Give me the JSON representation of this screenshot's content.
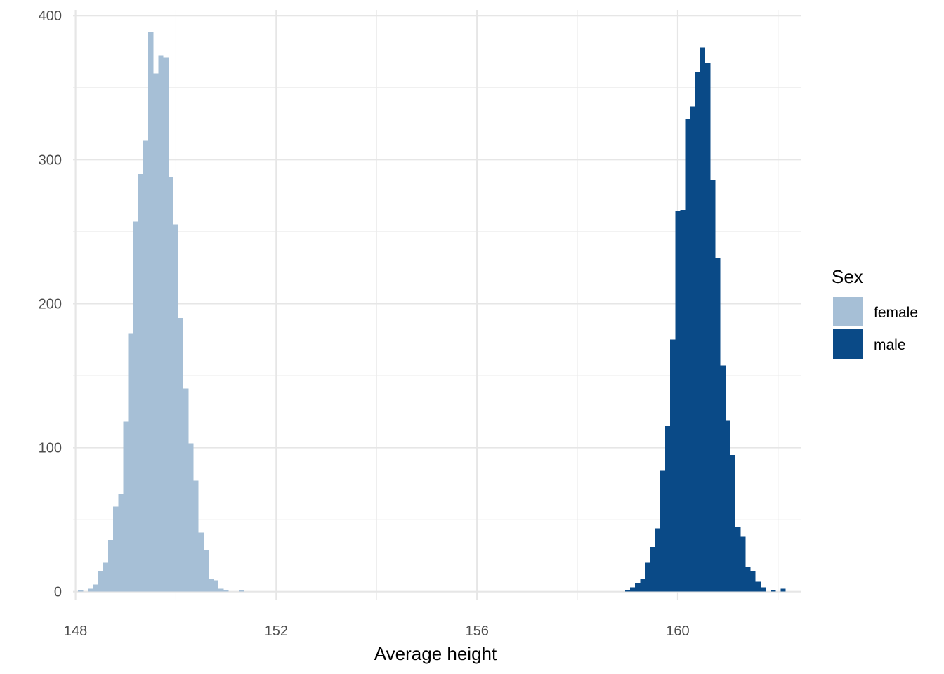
{
  "chart_data": {
    "type": "histogram",
    "title": "",
    "xlabel": "Average height",
    "ylabel": "",
    "xlim": [
      147.95,
      162.45
    ],
    "ylim": [
      -6,
      404
    ],
    "x_ticks": [
      148,
      152,
      156,
      160
    ],
    "x_tick_labels": [
      "148",
      "152",
      "156",
      "160"
    ],
    "y_ticks": [
      0,
      100,
      200,
      300,
      400
    ],
    "y_tick_labels": [
      "0",
      "100",
      "200",
      "300",
      "400"
    ],
    "bin_width": 0.1,
    "grid": true,
    "legend_position": "right",
    "legend_title": "Sex",
    "series": [
      {
        "name": "female",
        "color": "#a6bfd6",
        "bins": [
          {
            "x": 148.1,
            "y": 1
          },
          {
            "x": 148.2,
            "y": 0
          },
          {
            "x": 148.3,
            "y": 2
          },
          {
            "x": 148.4,
            "y": 5
          },
          {
            "x": 148.5,
            "y": 14
          },
          {
            "x": 148.6,
            "y": 20
          },
          {
            "x": 148.7,
            "y": 36
          },
          {
            "x": 148.8,
            "y": 59
          },
          {
            "x": 148.9,
            "y": 68
          },
          {
            "x": 149.0,
            "y": 118
          },
          {
            "x": 149.1,
            "y": 179
          },
          {
            "x": 149.2,
            "y": 257
          },
          {
            "x": 149.3,
            "y": 290
          },
          {
            "x": 149.4,
            "y": 313
          },
          {
            "x": 149.5,
            "y": 389
          },
          {
            "x": 149.6,
            "y": 360
          },
          {
            "x": 149.7,
            "y": 372
          },
          {
            "x": 149.8,
            "y": 371
          },
          {
            "x": 149.9,
            "y": 288
          },
          {
            "x": 150.0,
            "y": 255
          },
          {
            "x": 150.1,
            "y": 190
          },
          {
            "x": 150.2,
            "y": 141
          },
          {
            "x": 150.3,
            "y": 103
          },
          {
            "x": 150.4,
            "y": 77
          },
          {
            "x": 150.5,
            "y": 41
          },
          {
            "x": 150.6,
            "y": 29
          },
          {
            "x": 150.7,
            "y": 9
          },
          {
            "x": 150.8,
            "y": 8
          },
          {
            "x": 150.9,
            "y": 2
          },
          {
            "x": 151.0,
            "y": 1
          },
          {
            "x": 151.1,
            "y": 0
          },
          {
            "x": 151.2,
            "y": 0
          },
          {
            "x": 151.3,
            "y": 1
          }
        ]
      },
      {
        "name": "male",
        "color": "#0a4a87",
        "bins": [
          {
            "x": 159.0,
            "y": 1
          },
          {
            "x": 159.1,
            "y": 3
          },
          {
            "x": 159.2,
            "y": 6
          },
          {
            "x": 159.3,
            "y": 9
          },
          {
            "x": 159.4,
            "y": 20
          },
          {
            "x": 159.5,
            "y": 31
          },
          {
            "x": 159.6,
            "y": 44
          },
          {
            "x": 159.7,
            "y": 84
          },
          {
            "x": 159.8,
            "y": 115
          },
          {
            "x": 159.9,
            "y": 175
          },
          {
            "x": 160.0,
            "y": 264
          },
          {
            "x": 160.1,
            "y": 265
          },
          {
            "x": 160.2,
            "y": 328
          },
          {
            "x": 160.3,
            "y": 337
          },
          {
            "x": 160.4,
            "y": 361
          },
          {
            "x": 160.5,
            "y": 378
          },
          {
            "x": 160.6,
            "y": 367
          },
          {
            "x": 160.7,
            "y": 286
          },
          {
            "x": 160.8,
            "y": 232
          },
          {
            "x": 160.9,
            "y": 157
          },
          {
            "x": 161.0,
            "y": 119
          },
          {
            "x": 161.1,
            "y": 95
          },
          {
            "x": 161.2,
            "y": 45
          },
          {
            "x": 161.3,
            "y": 38
          },
          {
            "x": 161.4,
            "y": 17
          },
          {
            "x": 161.5,
            "y": 14
          },
          {
            "x": 161.6,
            "y": 7
          },
          {
            "x": 161.7,
            "y": 3
          },
          {
            "x": 161.8,
            "y": 0
          },
          {
            "x": 161.9,
            "y": 1
          },
          {
            "x": 162.0,
            "y": 0
          },
          {
            "x": 162.1,
            "y": 2
          }
        ]
      }
    ]
  }
}
